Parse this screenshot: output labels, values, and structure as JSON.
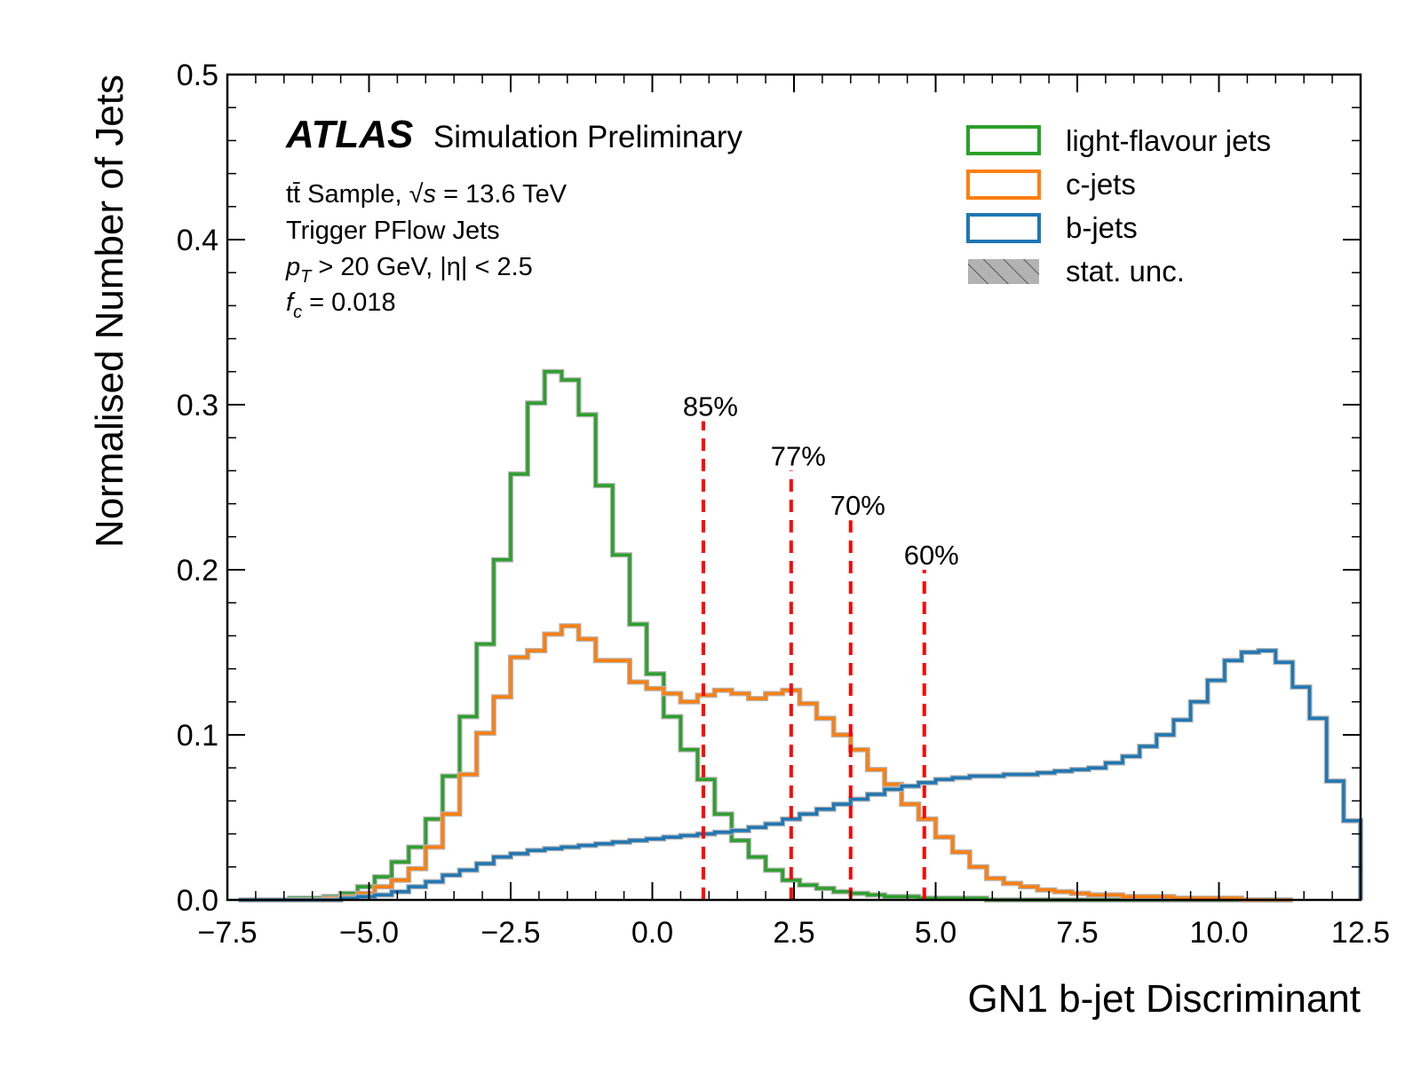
{
  "chart_data": {
    "type": "histogram",
    "title": "",
    "xlabel": "GN1 b-jet Discriminant",
    "ylabel": "Normalised Number of Jets",
    "xlim": [
      -7.5,
      12.5
    ],
    "ylim": [
      0.0,
      0.5
    ],
    "x_ticks": [
      -7.5,
      -5.0,
      -2.5,
      0.0,
      2.5,
      5.0,
      7.5,
      10.0,
      12.5
    ],
    "x_tick_labels": [
      "−7.5",
      "−5.0",
      "−2.5",
      "0.0",
      "2.5",
      "5.0",
      "7.5",
      "10.0",
      "12.5"
    ],
    "y_ticks": [
      0.0,
      0.1,
      0.2,
      0.3,
      0.4,
      0.5
    ],
    "y_tick_labels": [
      "0.0",
      "0.1",
      "0.2",
      "0.3",
      "0.4",
      "0.5"
    ],
    "bins": {
      "start": -7.3,
      "width": 0.3,
      "count": 62
    },
    "series": [
      {
        "name": "light-flavour jets",
        "color": "#2ca02c",
        "values": [
          0,
          0,
          0,
          0.001,
          0.001,
          0.002,
          0.004,
          0.008,
          0.014,
          0.023,
          0.032,
          0.049,
          0.075,
          0.111,
          0.155,
          0.206,
          0.258,
          0.301,
          0.32,
          0.315,
          0.294,
          0.251,
          0.209,
          0.167,
          0.137,
          0.111,
          0.091,
          0.073,
          0.052,
          0.036,
          0.026,
          0.018,
          0.012,
          0.009,
          0.007,
          0.005,
          0.004,
          0.003,
          0.002,
          0.002,
          0.001,
          0.001,
          0.001,
          0.001,
          0,
          0,
          0,
          0,
          0,
          0,
          0,
          0,
          0,
          0,
          0,
          0,
          0,
          0,
          0,
          0,
          0,
          0
        ]
      },
      {
        "name": "c-jets",
        "color": "#ff7f0e",
        "values": [
          0,
          0,
          0,
          0,
          0,
          0.001,
          0.002,
          0.004,
          0.008,
          0.012,
          0.019,
          0.032,
          0.052,
          0.076,
          0.101,
          0.123,
          0.147,
          0.151,
          0.161,
          0.166,
          0.158,
          0.145,
          0.145,
          0.132,
          0.128,
          0.125,
          0.12,
          0.124,
          0.127,
          0.125,
          0.122,
          0.125,
          0.127,
          0.119,
          0.11,
          0.1,
          0.091,
          0.079,
          0.07,
          0.058,
          0.049,
          0.038,
          0.029,
          0.02,
          0.013,
          0.01,
          0.008,
          0.006,
          0.005,
          0.004,
          0.003,
          0.003,
          0.002,
          0.002,
          0.002,
          0.001,
          0.001,
          0.001,
          0.001,
          0,
          0,
          0
        ]
      },
      {
        "name": "b-jets",
        "color": "#1f77b4",
        "values": [
          0,
          0,
          0,
          0,
          0,
          0,
          0.001,
          0.002,
          0.003,
          0.005,
          0.008,
          0.011,
          0.015,
          0.018,
          0.022,
          0.026,
          0.028,
          0.03,
          0.031,
          0.032,
          0.033,
          0.034,
          0.035,
          0.036,
          0.037,
          0.038,
          0.039,
          0.04,
          0.041,
          0.042,
          0.044,
          0.046,
          0.049,
          0.052,
          0.055,
          0.058,
          0.061,
          0.064,
          0.067,
          0.069,
          0.071,
          0.073,
          0.074,
          0.075,
          0.075,
          0.076,
          0.076,
          0.077,
          0.078,
          0.079,
          0.08,
          0.083,
          0.087,
          0.093,
          0.1,
          0.109,
          0.12,
          0.133,
          0.145,
          0.15,
          0.151,
          0.144
        ]
      }
    ],
    "b_jets_tail": [
      0.129,
      0.11,
      0.072,
      0.048
    ],
    "working_points": [
      {
        "label": "85%",
        "x": 0.9,
        "y_top": 0.29
      },
      {
        "label": "77%",
        "x": 2.45,
        "y_top": 0.26
      },
      {
        "label": "70%",
        "x": 3.5,
        "y_top": 0.23
      },
      {
        "label": "60%",
        "x": 4.8,
        "y_top": 0.2
      }
    ],
    "working_point_color": "#ff0000",
    "stat_unc_color": "#b3b3b3",
    "legend_position": "top-right"
  },
  "annotations": {
    "atlas": "ATLAS",
    "status": "Simulation Preliminary",
    "line1_prefix": "tt̄ Sample, ",
    "line1_sqrt": "√s",
    "line1_suffix": " = 13.6 TeV",
    "line2": "Trigger PFlow Jets",
    "line3_p": "p",
    "line3_sub": "T",
    "line3_rest": " > 20 GeV,  |η| < 2.5",
    "line4_f": "f",
    "line4_sub": "c",
    "line4_rest": " = 0.018"
  },
  "legend": {
    "light": "light-flavour jets",
    "c": "c-jets",
    "b": "b-jets",
    "unc": "stat. unc."
  }
}
